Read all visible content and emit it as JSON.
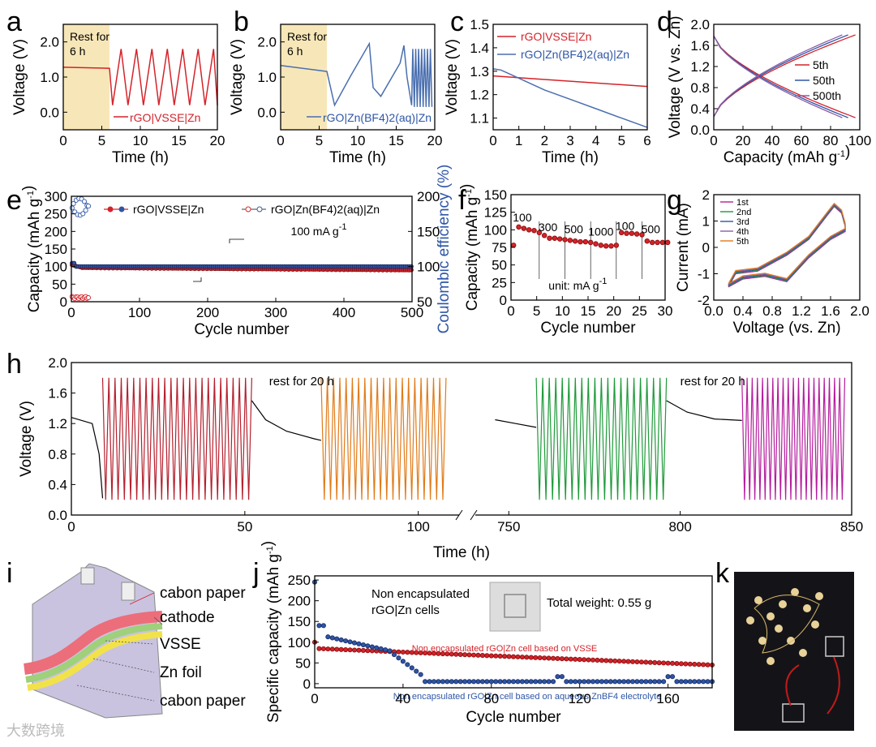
{
  "panel_letters": [
    "a",
    "b",
    "c",
    "d",
    "e",
    "f",
    "g",
    "h",
    "i",
    "j",
    "k"
  ],
  "colors": {
    "red": "#d4232a",
    "blue": "#2e56a6",
    "blue2": "#4a6fb0",
    "restfill": "#f7e7b8",
    "orange": "#e07b1a",
    "green": "#1f9a3a",
    "magenta": "#b51d9e",
    "crimson": "#b5202e",
    "purple": "#8b5ea8",
    "lav": "#c9c3e0"
  },
  "chart_data": [
    {
      "id": "a",
      "type": "line",
      "xlabel": "Time (h)",
      "ylabel": "Voltage (V)",
      "xlim": [
        0,
        20
      ],
      "ylim": [
        -0.5,
        2.5
      ],
      "xticks": [
        "0",
        "5",
        "10",
        "15",
        "20"
      ],
      "yticks": [
        "0.0",
        "1.0",
        "2.0"
      ],
      "rest_label": "Rest for\n6 h",
      "rest_span": [
        0,
        6
      ],
      "series": [
        {
          "name": "rGO|VSSE|Zn",
          "rest_voltage": 1.28,
          "cycles": 7,
          "vmin": 0.2,
          "vmax": 1.8
        }
      ]
    },
    {
      "id": "b",
      "type": "line",
      "xlabel": "Time (h)",
      "ylabel": "Voltage (V)",
      "xlim": [
        0,
        20
      ],
      "ylim": [
        -0.5,
        2.5
      ],
      "xticks": [
        "0",
        "5",
        "10",
        "15",
        "20"
      ],
      "yticks": [
        "0.0",
        "1.0",
        "2.0"
      ],
      "rest_label": "Rest for\n6 h",
      "rest_span": [
        0,
        6
      ],
      "series": [
        {
          "name": "rGO|Zn(BF4)2(aq)|Zn",
          "rest_voltage": [
            1.33,
            1.16
          ]
        }
      ]
    },
    {
      "id": "c",
      "type": "line",
      "xlabel": "Time (h)",
      "ylabel": "Voltage (V)",
      "xlim": [
        0,
        6
      ],
      "ylim": [
        1.05,
        1.5
      ],
      "xticks": [
        "0",
        "1",
        "2",
        "3",
        "4",
        "5",
        "6"
      ],
      "yticks": [
        "1.1",
        "1.2",
        "1.3",
        "1.4",
        "1.5"
      ],
      "series": [
        {
          "name": "rGO|VSSE|Zn",
          "x": [
            0,
            6
          ],
          "y": [
            1.28,
            1.235
          ]
        },
        {
          "name": "rGO|Zn(BF4)2(aq)|Zn",
          "x": [
            0,
            0.3,
            1,
            2,
            3,
            4,
            5,
            6
          ],
          "y": [
            1.31,
            1.305,
            1.27,
            1.22,
            1.18,
            1.14,
            1.1,
            1.06
          ]
        }
      ]
    },
    {
      "id": "d",
      "type": "line",
      "xlabel": "Capacity (mAh g-1)",
      "ylabel": "Voltage (V vs. Zn)",
      "xlim": [
        0,
        100
      ],
      "ylim": [
        0,
        2.0
      ],
      "xticks": [
        "0",
        "20",
        "40",
        "60",
        "80",
        "100"
      ],
      "yticks": [
        "0.0",
        "0.4",
        "0.8",
        "1.2",
        "1.6",
        "2.0"
      ],
      "series": [
        {
          "name": "5th",
          "cap": 97
        },
        {
          "name": "50th",
          "cap": 92
        },
        {
          "name": "500th",
          "cap": 88
        }
      ]
    },
    {
      "id": "e",
      "type": "scatter",
      "xlabel": "Cycle number",
      "ylabel": "Capacity (mAh g-1)",
      "y2label": "Coulombic efficiency (%)",
      "xlim": [
        0,
        500
      ],
      "ylim": [
        0,
        300
      ],
      "y2lim": [
        50,
        200
      ],
      "xticks": [
        "0",
        "100",
        "200",
        "300",
        "400",
        "500"
      ],
      "yticks": [
        "0",
        "50",
        "100",
        "150",
        "200",
        "250",
        "300"
      ],
      "y2ticks": [
        "50",
        "100",
        "150",
        "200"
      ],
      "annotation": "100  mA g-1",
      "series": [
        {
          "name": "rGO|VSSE|Zn",
          "capacity": [
            105,
            95,
            90
          ],
          "ce": 100
        },
        {
          "name": "rGO|Zn(BF4)2(aq)|Zn",
          "capacity": 15,
          "ce": [
            180,
            200
          ]
        }
      ]
    },
    {
      "id": "f",
      "type": "scatter",
      "xlabel": "Cycle number",
      "ylabel": "Capacity (mAh g-1)",
      "xlim": [
        0,
        30
      ],
      "ylim": [
        0,
        150
      ],
      "xticks": [
        "0",
        "5",
        "10",
        "15",
        "20",
        "25",
        "30"
      ],
      "yticks": [
        "0",
        "25",
        "50",
        "75",
        "100",
        "125",
        "150"
      ],
      "unit_label": "unit:  mA g-1",
      "rates": [
        "100",
        "300",
        "500",
        "1000",
        "100",
        "500"
      ],
      "values": [
        78,
        104,
        102,
        100,
        99,
        96,
        92,
        88,
        88,
        87,
        86,
        85,
        84,
        83,
        83,
        82,
        80,
        78,
        77,
        77,
        78,
        96,
        95,
        95,
        94,
        93,
        84,
        82,
        82,
        82,
        82
      ]
    },
    {
      "id": "g",
      "type": "line",
      "xlabel": "Voltage (vs. Zn)",
      "ylabel": "Current (mA)",
      "xlim": [
        0,
        2.0
      ],
      "ylim": [
        -2,
        2
      ],
      "xticks": [
        "0.0",
        "0.4",
        "0.8",
        "1.2",
        "1.6",
        "2.0"
      ],
      "yticks": [
        "-2",
        "-1",
        "0",
        "1",
        "2"
      ],
      "series": [
        {
          "name": "1st"
        },
        {
          "name": "2nd"
        },
        {
          "name": "3rd"
        },
        {
          "name": "4th"
        },
        {
          "name": "5th"
        }
      ]
    },
    {
      "id": "h",
      "type": "line",
      "xlabel": "Time (h)",
      "ylabel": "Voltage (V)",
      "ylim": [
        0,
        2.0
      ],
      "xticks": [
        "0",
        "50",
        "100",
        "750",
        "800",
        "850"
      ],
      "yticks": [
        "0.0",
        "0.4",
        "0.8",
        "1.2",
        "1.6",
        "2.0"
      ],
      "annotations": [
        "rest for 20 h",
        "rest for 20 h"
      ]
    },
    {
      "id": "j",
      "type": "scatter",
      "xlabel": "Cycle number",
      "ylabel": "Specific capacity (mAh g-1)",
      "xlim": [
        0,
        180
      ],
      "ylim": [
        -10,
        260
      ],
      "xticks": [
        "0",
        "40",
        "80",
        "120",
        "160"
      ],
      "yticks": [
        "0",
        "50",
        "100",
        "150",
        "200",
        "250"
      ],
      "title_lines": [
        "Non encapsulated",
        "rGO|Zn cells"
      ],
      "weight_label": "Total weight: 0.55 g",
      "series": [
        {
          "name": "Non encapsulated rGO|Zn cell based on VSSE",
          "start": 100,
          "end": 45
        },
        {
          "name": "Non encapsulated rGO|Zn cell based on aqueous ZnBF4 electrolyte",
          "start": 245,
          "end": 5
        }
      ]
    }
  ],
  "panel_i": {
    "labels": [
      "cabon paper",
      "cathode",
      "VSSE",
      "Zn foil",
      "cabon paper"
    ]
  },
  "watermark": "大数跨境"
}
